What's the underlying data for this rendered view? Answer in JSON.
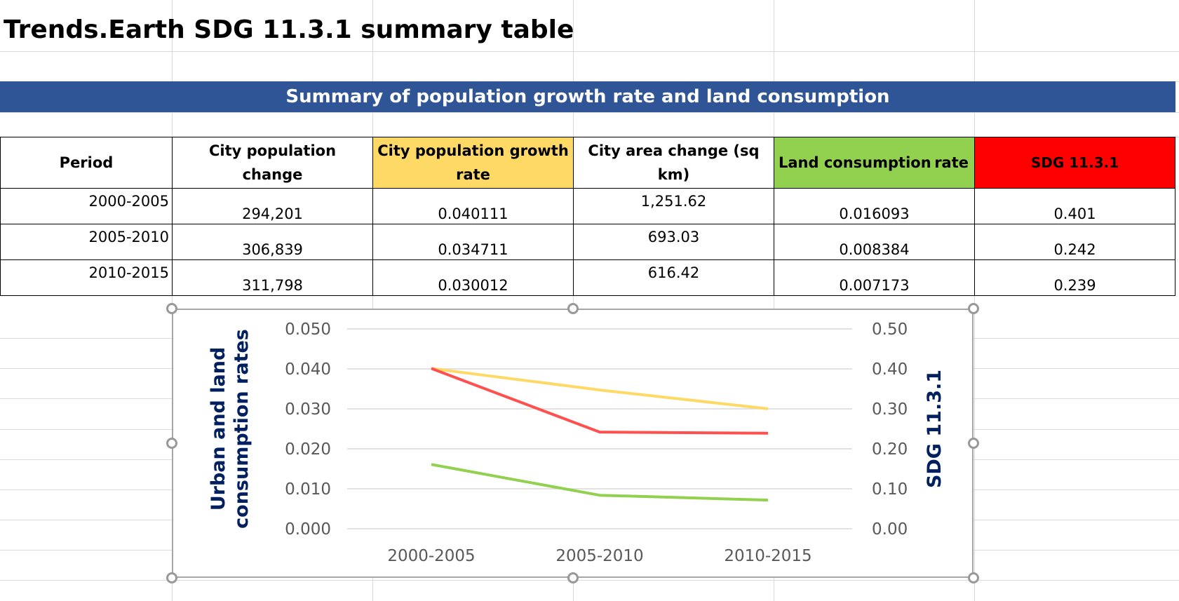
{
  "title": "Trends.Earth SDG 11.3.1 summary table",
  "banner": "Summary of population growth rate and land consumption",
  "table": {
    "headers": {
      "period": "Period",
      "pop_change": "City population change",
      "pop_growth": "City population growth rate",
      "area_change": "City area change (sq km)",
      "land_consumption_a": "Land consumption",
      "land_consumption_b": "rate",
      "sdg": "SDG 11.3.1"
    },
    "rows": [
      {
        "period": "2000-2005",
        "pop_change": "294,201",
        "pop_growth": "0.040111",
        "area_change": "1,251.62",
        "land_consumption": "0.016093",
        "sdg": "0.401"
      },
      {
        "period": "2005-2010",
        "pop_change": "306,839",
        "pop_growth": "0.034711",
        "area_change": "693.03",
        "land_consumption": "0.008384",
        "sdg": "0.242"
      },
      {
        "period": "2010-2015",
        "pop_change": "311,798",
        "pop_growth": "0.030012",
        "area_change": "616.42",
        "land_consumption": "0.007173",
        "sdg": "0.239"
      }
    ]
  },
  "colors": {
    "banner": "#2f5597",
    "population_growth": "#ffd966",
    "land_consumption": "#92d050",
    "sdg": "#ff0000",
    "axis_title": "#002060"
  },
  "chart_data": {
    "type": "line",
    "categories": [
      "2000-2005",
      "2005-2010",
      "2010-2015"
    ],
    "ylabel": "Urban and land consumption rates",
    "y2label": "SDG 11.3.1",
    "ylim": [
      0,
      0.05
    ],
    "y2lim": [
      0,
      0.5
    ],
    "yticks": [
      "0.050",
      "0.040",
      "0.030",
      "0.020",
      "0.010",
      "0.000"
    ],
    "y2ticks": [
      "0.50",
      "0.40",
      "0.30",
      "0.20",
      "0.10",
      "0.00"
    ],
    "grid": true,
    "series": [
      {
        "axis": "left",
        "color": "#ffd966",
        "values": [
          0.040111,
          0.034711,
          0.030012
        ]
      },
      {
        "axis": "left",
        "color": "#92d050",
        "values": [
          0.016093,
          0.008384,
          0.007173
        ]
      },
      {
        "axis": "right",
        "color": "#ff5050",
        "values": [
          0.401,
          0.242,
          0.239
        ]
      }
    ]
  }
}
